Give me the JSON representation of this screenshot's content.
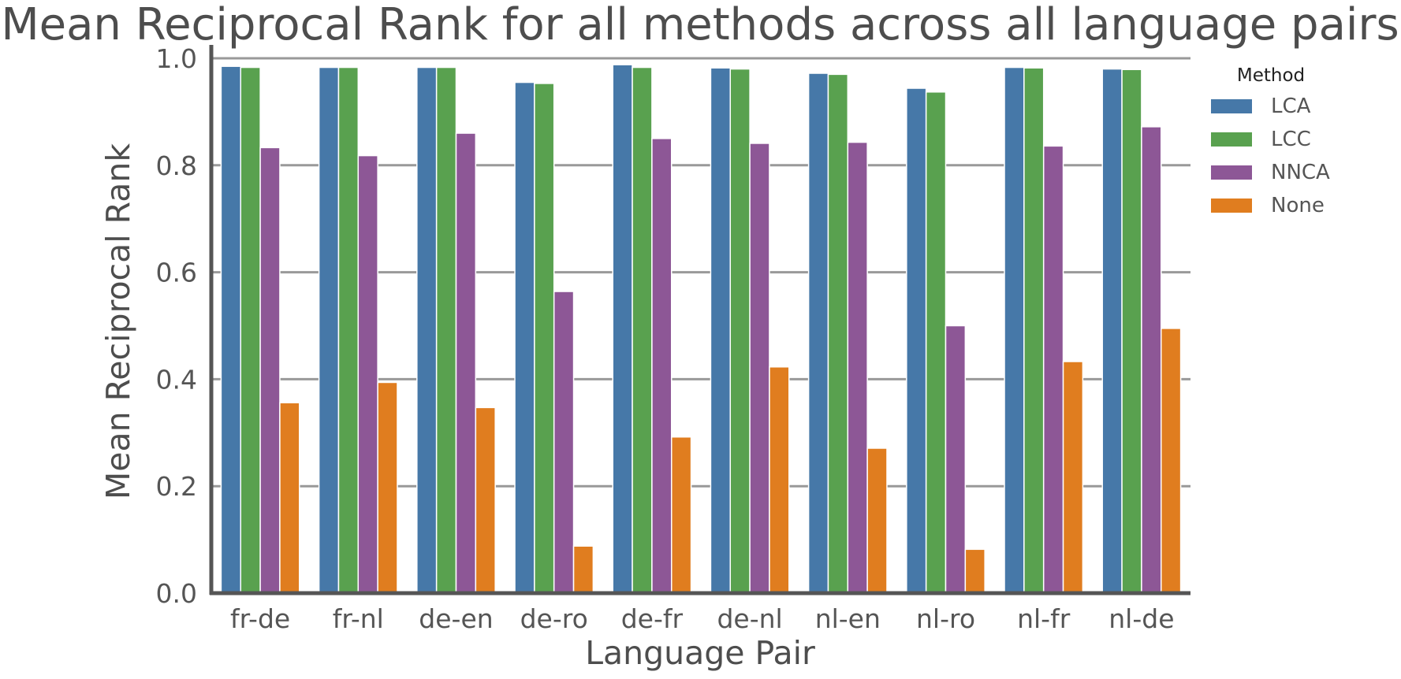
{
  "chart_data": {
    "type": "bar",
    "title": "Mean Reciprocal Rank for all methods across all language pairs",
    "xlabel": "Language Pair",
    "ylabel": "Mean Reciprocal Rank",
    "ylim": [
      0,
      1.0
    ],
    "yticks": [
      "0.0",
      "0.2",
      "0.4",
      "0.6",
      "0.8",
      "1.0"
    ],
    "grid": "horizontal",
    "legend": {
      "title": "Method",
      "placement": "right"
    },
    "categories": [
      "fr-de",
      "fr-nl",
      "de-en",
      "de-ro",
      "de-fr",
      "de-nl",
      "nl-en",
      "nl-ro",
      "nl-fr",
      "nl-de"
    ],
    "series": [
      {
        "name": "LCA",
        "color": "#4678a8",
        "values": [
          0.985,
          0.983,
          0.983,
          0.955,
          0.988,
          0.982,
          0.972,
          0.944,
          0.983,
          0.98
        ]
      },
      {
        "name": "LCC",
        "color": "#59a14f",
        "values": [
          0.983,
          0.983,
          0.983,
          0.953,
          0.983,
          0.98,
          0.97,
          0.937,
          0.982,
          0.979
        ]
      },
      {
        "name": "NNCA",
        "color": "#8d5796",
        "values": [
          0.833,
          0.818,
          0.86,
          0.564,
          0.85,
          0.841,
          0.843,
          0.5,
          0.836,
          0.872
        ]
      },
      {
        "name": "None",
        "color": "#e07d1f",
        "values": [
          0.356,
          0.394,
          0.347,
          0.088,
          0.292,
          0.423,
          0.271,
          0.082,
          0.433,
          0.495
        ]
      }
    ]
  }
}
